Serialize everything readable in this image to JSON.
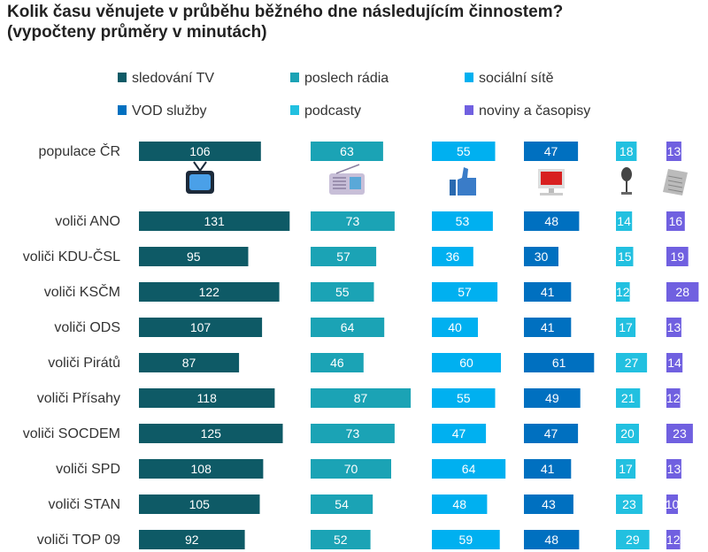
{
  "chart_data": {
    "type": "bar",
    "title": "Kolik času věnujete v průběhu běžného dne následujícím činnostem?",
    "subtitle": "(vypočteny průměry v minutách)",
    "legend_placement": "top",
    "grid": false,
    "categories": [
      "populace ČR",
      "voliči ANO",
      "voliči KDU-ČSL",
      "voliči KSČM",
      "voliči ODS",
      "voliči Pirátů",
      "voliči Přísahy",
      "voliči SOCDEM",
      "voliči SPD",
      "voliči STAN",
      "voliči TOP 09"
    ],
    "series": [
      {
        "name": "sledování TV",
        "color": "#0e5a66",
        "icon": "tv-icon",
        "values": [
          106,
          131,
          95,
          122,
          107,
          87,
          118,
          125,
          108,
          105,
          92
        ]
      },
      {
        "name": "poslech rádia",
        "color": "#1ba3b5",
        "icon": "radio-icon",
        "values": [
          63,
          73,
          57,
          55,
          64,
          46,
          87,
          73,
          70,
          54,
          52
        ]
      },
      {
        "name": "sociální sítě",
        "color": "#00b0f0",
        "icon": "thumbs-up-icon",
        "values": [
          55,
          53,
          36,
          57,
          40,
          60,
          55,
          47,
          64,
          48,
          59
        ]
      },
      {
        "name": "VOD služby",
        "color": "#0070c0",
        "icon": "computer-icon",
        "values": [
          47,
          48,
          30,
          41,
          41,
          61,
          49,
          47,
          41,
          43,
          48
        ]
      },
      {
        "name": "podcasty",
        "color": "#22c0e0",
        "icon": "microphone-icon",
        "values": [
          18,
          14,
          15,
          12,
          17,
          27,
          21,
          20,
          17,
          23,
          29
        ]
      },
      {
        "name": "noviny a časopisy",
        "color": "#7060e0",
        "icon": "newspaper-icon",
        "values": [
          13,
          16,
          19,
          28,
          13,
          14,
          12,
          23,
          13,
          10,
          12
        ]
      }
    ]
  }
}
